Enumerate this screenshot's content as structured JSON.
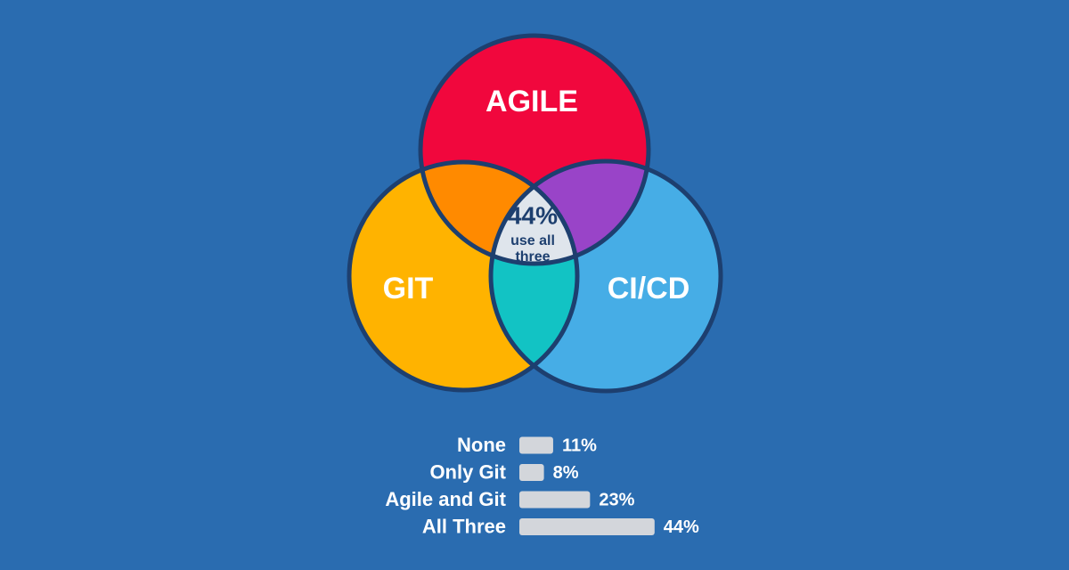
{
  "venn": {
    "sets": [
      "AGILE",
      "GIT",
      "CI/CD"
    ],
    "center": {
      "label": "44%",
      "caption": [
        "use all",
        "three"
      ]
    }
  },
  "chart_data": {
    "type": "bar",
    "orientation": "horizontal",
    "categories": [
      "None",
      "Only Git",
      "Agile and Git",
      "All Three"
    ],
    "values": [
      11,
      8,
      23,
      44
    ],
    "value_labels": [
      "11%",
      "8%",
      "23%",
      "44%"
    ],
    "color": "#d3d6db"
  }
}
